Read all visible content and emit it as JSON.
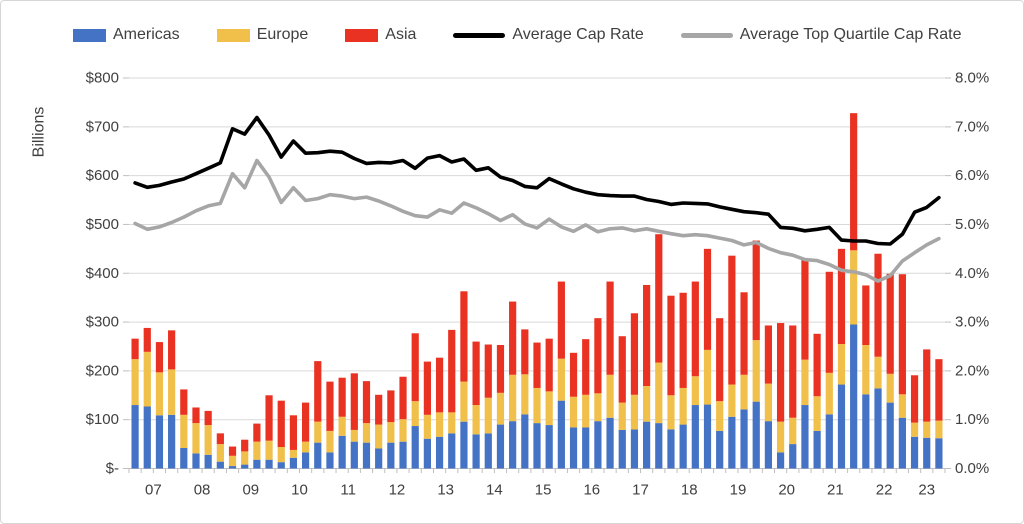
{
  "chart_data": {
    "type": "bar",
    "subtype": "stacked-bars-with-lines",
    "title": "",
    "left_axis": {
      "title": "Billions",
      "tick_labels": [
        "$-",
        "$100",
        "$200",
        "$300",
        "$400",
        "$500",
        "$600",
        "$700",
        "$800"
      ],
      "min": 0,
      "max": 800,
      "grid": true
    },
    "right_axis": {
      "tick_labels": [
        "0.0%",
        "1.0%",
        "2.0%",
        "3.0%",
        "4.0%",
        "5.0%",
        "6.0%",
        "7.0%",
        "8.0%"
      ],
      "min": 0,
      "max": 8
    },
    "x_year_labels": [
      "07",
      "08",
      "09",
      "10",
      "11",
      "12",
      "13",
      "14",
      "15",
      "16",
      "17",
      "18",
      "19",
      "20",
      "21",
      "22",
      "23"
    ],
    "quarters_per_year": 4,
    "last_year_quarters": 3,
    "categories": [
      "07Q1",
      "07Q2",
      "07Q3",
      "07Q4",
      "08Q1",
      "08Q2",
      "08Q3",
      "08Q4",
      "09Q1",
      "09Q2",
      "09Q3",
      "09Q4",
      "10Q1",
      "10Q2",
      "10Q3",
      "10Q4",
      "11Q1",
      "11Q2",
      "11Q3",
      "11Q4",
      "12Q1",
      "12Q2",
      "12Q3",
      "12Q4",
      "13Q1",
      "13Q2",
      "13Q3",
      "13Q4",
      "14Q1",
      "14Q2",
      "14Q3",
      "14Q4",
      "15Q1",
      "15Q2",
      "15Q3",
      "15Q4",
      "16Q1",
      "16Q2",
      "16Q3",
      "16Q4",
      "17Q1",
      "17Q2",
      "17Q3",
      "17Q4",
      "18Q1",
      "18Q2",
      "18Q3",
      "18Q4",
      "19Q1",
      "19Q2",
      "19Q3",
      "19Q4",
      "20Q1",
      "20Q2",
      "20Q3",
      "20Q4",
      "21Q1",
      "21Q2",
      "21Q3",
      "21Q4",
      "22Q1",
      "22Q2",
      "22Q3",
      "22Q4",
      "23Q1",
      "23Q2",
      "23Q3"
    ],
    "series": [
      {
        "name": "Americas",
        "type": "bar",
        "axis": "left",
        "color": "#4472C4",
        "values": [
          130,
          127,
          109,
          110,
          42,
          31,
          28,
          14,
          5,
          8,
          18,
          18,
          13,
          22,
          33,
          53,
          33,
          67,
          55,
          53,
          41,
          53,
          55,
          87,
          61,
          65,
          72,
          96,
          70,
          72,
          90,
          97,
          111,
          93,
          89,
          139,
          84,
          84,
          97,
          104,
          79,
          80,
          96,
          93,
          80,
          90,
          130,
          131,
          77,
          106,
          121,
          137,
          97,
          33,
          50,
          130,
          77,
          111,
          172,
          295,
          152,
          164,
          135,
          104,
          65,
          63,
          62
        ]
      },
      {
        "name": "Europe",
        "type": "bar",
        "axis": "left",
        "color": "#F0C04B",
        "values": [
          94,
          112,
          88,
          93,
          68,
          62,
          61,
          36,
          21,
          27,
          37,
          39,
          31,
          16,
          22,
          43,
          44,
          39,
          24,
          40,
          49,
          42,
          46,
          51,
          49,
          50,
          43,
          82,
          60,
          73,
          65,
          95,
          82,
          72,
          69,
          86,
          63,
          67,
          57,
          88,
          56,
          71,
          73,
          124,
          70,
          75,
          59,
          112,
          61,
          66,
          71,
          126,
          77,
          63,
          54,
          93,
          71,
          85,
          83,
          152,
          101,
          65,
          59,
          48,
          29,
          33,
          36
        ]
      },
      {
        "name": "Asia",
        "type": "bar",
        "axis": "left",
        "color": "#EA3223",
        "values": [
          42,
          49,
          62,
          80,
          52,
          32,
          29,
          22,
          19,
          24,
          37,
          93,
          95,
          71,
          80,
          124,
          101,
          80,
          116,
          86,
          61,
          65,
          87,
          139,
          109,
          112,
          169,
          185,
          130,
          109,
          98,
          150,
          92,
          93,
          108,
          158,
          90,
          114,
          154,
          191,
          136,
          167,
          207,
          263,
          204,
          195,
          194,
          207,
          170,
          264,
          169,
          204,
          119,
          202,
          189,
          207,
          128,
          207,
          195,
          281,
          122,
          211,
          205,
          246,
          97,
          148,
          126
        ]
      },
      {
        "name": "Average Cap Rate",
        "type": "line",
        "axis": "right",
        "color": "#000000",
        "values": [
          5.85,
          5.76,
          5.8,
          5.87,
          5.93,
          6.04,
          6.15,
          6.26,
          6.96,
          6.85,
          7.19,
          6.83,
          6.38,
          6.71,
          6.46,
          6.47,
          6.5,
          6.48,
          6.35,
          6.25,
          6.27,
          6.26,
          6.31,
          6.15,
          6.36,
          6.41,
          6.28,
          6.34,
          6.11,
          6.16,
          5.97,
          5.9,
          5.78,
          5.75,
          5.94,
          5.83,
          5.73,
          5.66,
          5.61,
          5.59,
          5.58,
          5.58,
          5.51,
          5.47,
          5.41,
          5.44,
          5.43,
          5.42,
          5.36,
          5.31,
          5.26,
          5.24,
          5.21,
          4.94,
          4.92,
          4.87,
          4.9,
          4.94,
          4.68,
          4.66,
          4.66,
          4.61,
          4.6,
          4.8,
          5.25,
          5.35,
          5.55
        ]
      },
      {
        "name": "Average Top Quartile Cap Rate",
        "type": "line",
        "axis": "right",
        "color": "#A6A6A6",
        "values": [
          5.02,
          4.9,
          4.95,
          5.04,
          5.15,
          5.28,
          5.38,
          5.43,
          6.04,
          5.75,
          6.31,
          5.97,
          5.45,
          5.75,
          5.49,
          5.53,
          5.61,
          5.58,
          5.53,
          5.56,
          5.48,
          5.38,
          5.27,
          5.18,
          5.15,
          5.3,
          5.23,
          5.44,
          5.34,
          5.22,
          5.08,
          5.2,
          5.01,
          4.93,
          5.11,
          4.95,
          4.86,
          4.99,
          4.85,
          4.91,
          4.93,
          4.87,
          4.91,
          4.86,
          4.81,
          4.77,
          4.79,
          4.77,
          4.72,
          4.67,
          4.58,
          4.63,
          4.51,
          4.42,
          4.37,
          4.28,
          4.26,
          4.18,
          4.06,
          4.03,
          3.97,
          3.84,
          3.95,
          4.25,
          4.42,
          4.58,
          4.71
        ]
      }
    ],
    "legend_position": "top",
    "colors": {
      "grid": "#D9D9D9",
      "axis": "#BFBFBF",
      "text": "#404040"
    }
  }
}
